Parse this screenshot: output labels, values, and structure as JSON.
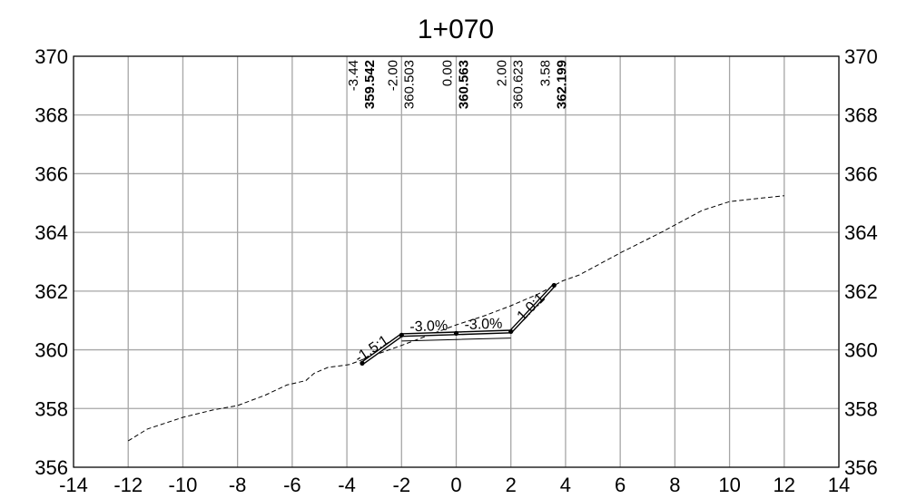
{
  "chart_data": {
    "type": "line",
    "title": "1+070",
    "xlabel": "",
    "ylabel": "",
    "xlim": [
      -14,
      14
    ],
    "ylim": [
      356,
      370
    ],
    "grid": true,
    "x_ticks": [
      -14,
      -12,
      -10,
      -8,
      -6,
      -4,
      -2,
      0,
      2,
      4,
      6,
      8,
      10,
      12,
      14
    ],
    "y_ticks": [
      356,
      358,
      360,
      362,
      364,
      366,
      368,
      370
    ],
    "series": [
      {
        "key": "ground",
        "style": "dashed",
        "points": [
          [
            -12.0,
            356.9
          ],
          [
            -11.3,
            357.3
          ],
          [
            -10.0,
            357.7
          ],
          [
            -8.9,
            357.95
          ],
          [
            -8.0,
            358.1
          ],
          [
            -7.0,
            358.45
          ],
          [
            -6.2,
            358.8
          ],
          [
            -5.5,
            358.95
          ],
          [
            -5.2,
            359.2
          ],
          [
            -4.7,
            359.4
          ],
          [
            -3.9,
            359.5
          ],
          [
            -3.2,
            359.75
          ],
          [
            -2.6,
            359.95
          ],
          [
            -2.0,
            360.15
          ],
          [
            -1.0,
            360.5
          ],
          [
            0.0,
            360.85
          ],
          [
            1.0,
            361.15
          ],
          [
            2.0,
            361.5
          ],
          [
            3.0,
            361.9
          ],
          [
            3.9,
            362.35
          ],
          [
            4.5,
            362.55
          ],
          [
            6.0,
            363.3
          ],
          [
            7.5,
            364.0
          ],
          [
            9.0,
            364.75
          ],
          [
            10.0,
            365.05
          ],
          [
            11.0,
            365.15
          ],
          [
            12.0,
            365.25
          ]
        ]
      },
      {
        "key": "design",
        "style": "solid-double",
        "points": [
          [
            -3.44,
            359.542
          ],
          [
            -2.0,
            360.503
          ],
          [
            0.0,
            360.563
          ],
          [
            2.0,
            360.623
          ],
          [
            3.58,
            362.199
          ]
        ]
      },
      {
        "key": "subgrade",
        "style": "thin",
        "points": [
          [
            -2.0,
            360.3
          ],
          [
            0.0,
            360.35
          ],
          [
            2.0,
            360.4
          ]
        ]
      }
    ],
    "point_labels": [
      {
        "offset": "-3.44",
        "elevation": "359.542"
      },
      {
        "offset": "-2.00",
        "elevation": "360.503"
      },
      {
        "offset": "0.00",
        "elevation": "360.563"
      },
      {
        "offset": "2.00",
        "elevation": "360.623"
      },
      {
        "offset": "3.58",
        "elevation": "362.199"
      }
    ],
    "slope_labels": [
      {
        "text": "-1.5:1",
        "x": -3.0,
        "y": 359.9
      },
      {
        "text": "-3.0%",
        "x": -1.0,
        "y": 360.65
      },
      {
        "text": "-3.0%",
        "x": 1.0,
        "y": 360.72
      },
      {
        "text": "1.0:1",
        "x": 2.85,
        "y": 361.35
      }
    ]
  }
}
